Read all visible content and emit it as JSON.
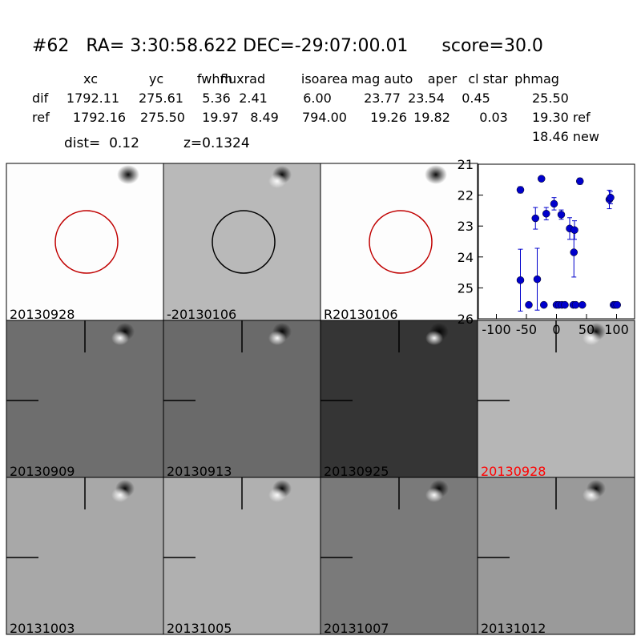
{
  "header": {
    "title": "#62   RA= 3:30:58.622 DEC=-29:07:00.01      score=30.0",
    "columns": [
      "xc",
      "yc",
      "fwhm",
      "fluxrad",
      "isoarea",
      "mag auto",
      "aper",
      "cl star",
      "phmag"
    ],
    "rows": [
      {
        "label": "dif",
        "values": [
          "1792.11",
          "275.61",
          "5.36",
          "2.41",
          "6.00",
          "23.77",
          "23.54",
          "0.45",
          "25.50"
        ]
      },
      {
        "label": "ref",
        "values": [
          "1792.16",
          "275.50",
          "19.97",
          "8.49",
          "794.00",
          "19.26",
          "19.82",
          "0.03",
          "19.30 ref"
        ]
      }
    ],
    "extra": "18.46 new",
    "dist": "dist=  0.12",
    "z": "z=0.1324"
  },
  "panels": [
    {
      "label": "20130928",
      "color": "#000000"
    },
    {
      "label": "-20130106",
      "color": "#000000"
    },
    {
      "label": "R20130106",
      "color": "#000000"
    },
    {
      "label": "20130909",
      "color": "#000000"
    },
    {
      "label": "20130913",
      "color": "#000000"
    },
    {
      "label": "20130925",
      "color": "#000000"
    },
    {
      "label": "20130928",
      "color": "#ff0000"
    },
    {
      "label": "20131003",
      "color": "#000000"
    },
    {
      "label": "20131005",
      "color": "#000000"
    },
    {
      "label": "20131007",
      "color": "#000000"
    },
    {
      "label": "20131012",
      "color": "#000000"
    }
  ],
  "chart_data": {
    "type": "scatter",
    "color": "#0000cc",
    "x": [
      -60,
      -60,
      -46,
      -35,
      -32,
      -25,
      -21,
      -17,
      -4,
      0,
      4,
      8,
      9,
      14,
      22,
      28,
      29,
      30,
      32,
      39,
      43,
      88,
      90,
      95,
      98,
      101
    ],
    "values": [
      24.75,
      21.83,
      25.55,
      22.75,
      24.72,
      21.47,
      25.55,
      22.6,
      22.28,
      25.55,
      25.55,
      22.63,
      25.55,
      25.55,
      23.08,
      25.55,
      23.85,
      23.13,
      25.55,
      21.55,
      25.55,
      22.14,
      22.08,
      25.55,
      25.55,
      25.55
    ],
    "errors": [
      1.0,
      0.1,
      null,
      0.35,
      1.0,
      null,
      null,
      0.2,
      0.2,
      null,
      null,
      0.15,
      null,
      null,
      0.35,
      null,
      0.8,
      0.3,
      null,
      0.1,
      null,
      0.3,
      0.2,
      null,
      null,
      null
    ],
    "xlim": [
      -130,
      130
    ],
    "ylim": [
      26,
      21
    ],
    "xticks": [
      -100,
      -50,
      0,
      50,
      100
    ],
    "yticks": [
      21,
      22,
      23,
      24,
      25,
      26
    ]
  }
}
